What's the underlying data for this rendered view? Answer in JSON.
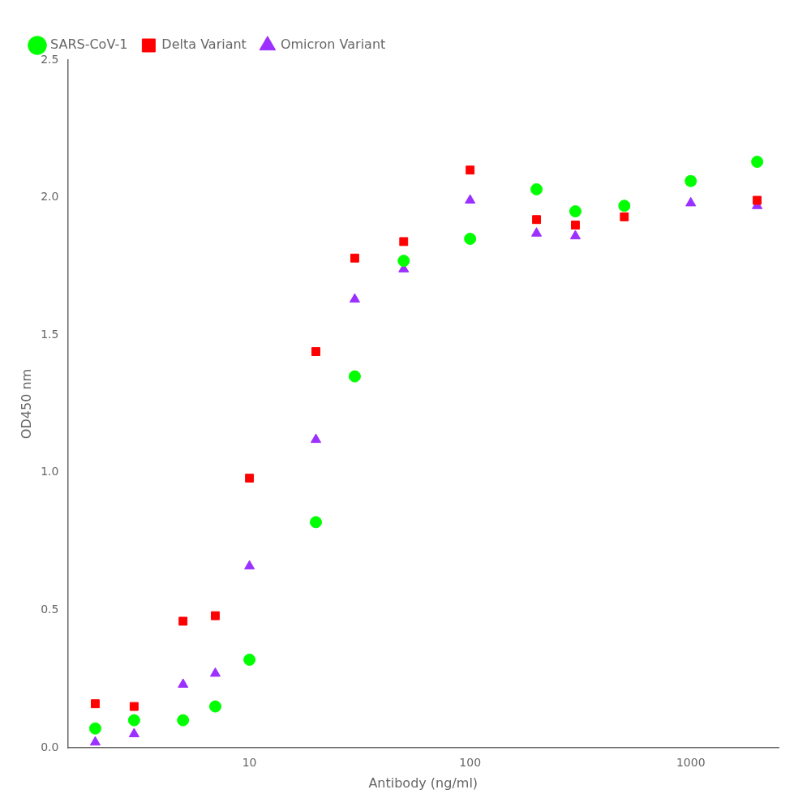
{
  "chart_data": {
    "type": "scatter",
    "xlabel": "Antibody (ng/ml)",
    "ylabel": "OD450 nm",
    "log": "x",
    "xlim": [
      1.5,
      2500
    ],
    "xticks": [
      10,
      100,
      1000
    ],
    "ylim": [
      0,
      2.5
    ],
    "yticks": [
      {
        "value": 0.0,
        "label": "0.0"
      },
      0.5,
      {
        "value": 1.0,
        "label": "1.0"
      },
      1.5,
      {
        "value": 2.0,
        "label": "2.0"
      },
      2.5
    ],
    "grid": false,
    "legend": "upper left",
    "series": [
      {
        "name": "SARS-CoV-1",
        "color": "#00ff00",
        "marker": "circle",
        "x": [
          2,
          3,
          5,
          7,
          10,
          20,
          30,
          50,
          100,
          200,
          300,
          500,
          1000,
          2000
        ],
        "values": [
          0.07,
          0.1,
          0.1,
          0.15,
          0.32,
          0.82,
          1.35,
          1.77,
          1.85,
          2.03,
          1.95,
          1.97,
          2.06,
          2.13
        ]
      },
      {
        "name": "Delta Variant",
        "color": "#ff0000",
        "marker": "square",
        "x": [
          2,
          3,
          5,
          7,
          10,
          20,
          30,
          50,
          100,
          200,
          300,
          500,
          1000,
          2000
        ],
        "values": [
          0.16,
          0.15,
          0.46,
          0.48,
          0.98,
          1.44,
          1.78,
          1.84,
          2.1,
          1.92,
          1.9,
          1.93,
          2.06,
          1.99
        ]
      },
      {
        "name": "Omicron Variant",
        "color": "#9b30ff",
        "marker": "triangle",
        "x": [
          2,
          3,
          5,
          7,
          10,
          20,
          30,
          50,
          100,
          200,
          300,
          500,
          1000,
          2000
        ],
        "values": [
          0.02,
          0.05,
          0.23,
          0.27,
          0.66,
          1.12,
          1.63,
          1.74,
          1.99,
          1.87,
          1.86,
          1.97,
          1.98,
          1.97
        ]
      }
    ]
  }
}
